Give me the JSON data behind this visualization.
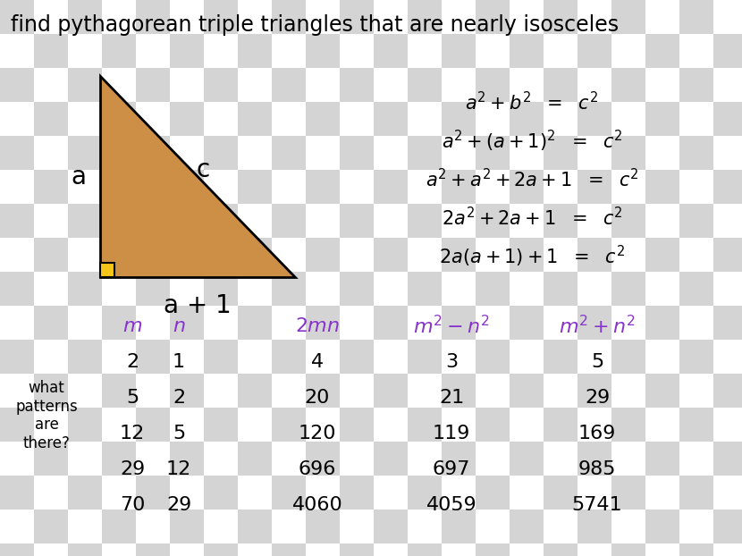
{
  "title": "find pythagorean triple triangles that are nearly isosceles",
  "title_fontsize": 17,
  "title_color": "#000000",
  "background_checker_color1": "#d4d4d4",
  "background_checker_color2": "#ffffff",
  "triangle_fill": "#cc8f45",
  "triangle_outline": "#000000",
  "right_angle_box_color": "#f5c518",
  "table_header_color": "#8833cc",
  "table_data": [
    [
      2,
      1,
      4,
      3,
      5
    ],
    [
      5,
      2,
      20,
      21,
      29
    ],
    [
      12,
      5,
      120,
      119,
      169
    ],
    [
      29,
      12,
      696,
      697,
      985
    ],
    [
      70,
      29,
      4060,
      4059,
      5741
    ]
  ],
  "side_labels": [
    "",
    "",
    "what\npatterns\nare\nthere?",
    "",
    ""
  ],
  "data_fontsize": 16,
  "formula_fontsize": 15,
  "header_fontsize": 16
}
